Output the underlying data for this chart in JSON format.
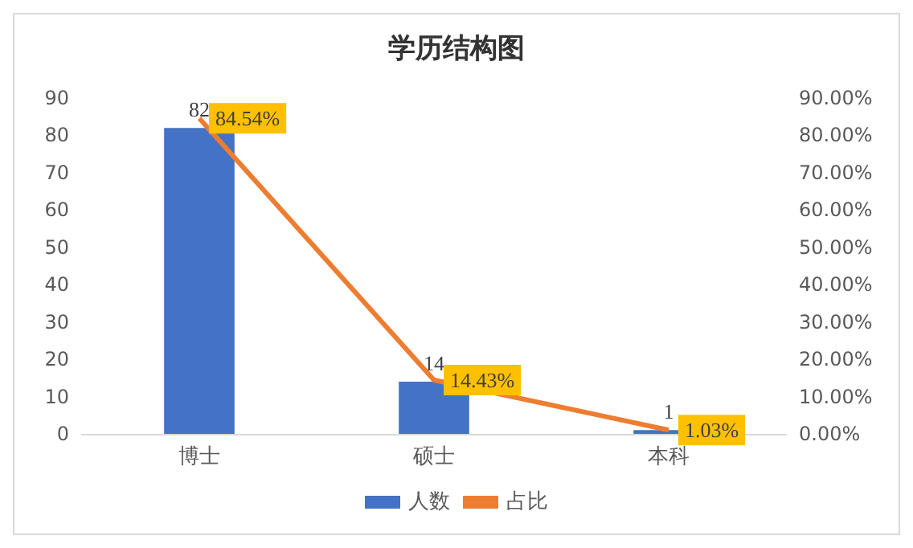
{
  "chart_data": {
    "type": "bar",
    "title": "学历结构图",
    "categories": [
      "博士",
      "硕士",
      "本科"
    ],
    "series": [
      {
        "name": "人数",
        "color": "#4472c4",
        "values": [
          82,
          14,
          1
        ],
        "value_labels": [
          "82",
          "14",
          "1"
        ]
      },
      {
        "name": "占比",
        "type": "line",
        "axis": "y2",
        "color": "#ed7d31",
        "values": [
          84.54,
          14.43,
          1.03
        ],
        "value_labels": [
          "84.54%",
          "14.43%",
          "1.03%"
        ]
      }
    ],
    "ylim": [
      0,
      90
    ],
    "yticks": [
      0,
      10,
      20,
      30,
      40,
      50,
      60,
      70,
      80,
      90
    ],
    "y2lim": [
      0,
      90
    ],
    "y2ticks": [
      {
        "value": 0,
        "label": "0.00%"
      },
      {
        "value": 10,
        "label": "10.00%"
      },
      {
        "value": 20,
        "label": "20.00%"
      },
      {
        "value": 30,
        "label": "30.00%"
      },
      {
        "value": 40,
        "label": "40.00%"
      },
      {
        "value": 50,
        "label": "50.00%"
      },
      {
        "value": 60,
        "label": "60.00%"
      },
      {
        "value": 70,
        "label": "70.00%"
      },
      {
        "value": 80,
        "label": "80.00%"
      },
      {
        "value": 90,
        "label": "90.00%"
      }
    ],
    "grid": false,
    "legend": "bottom",
    "marker": "none"
  }
}
